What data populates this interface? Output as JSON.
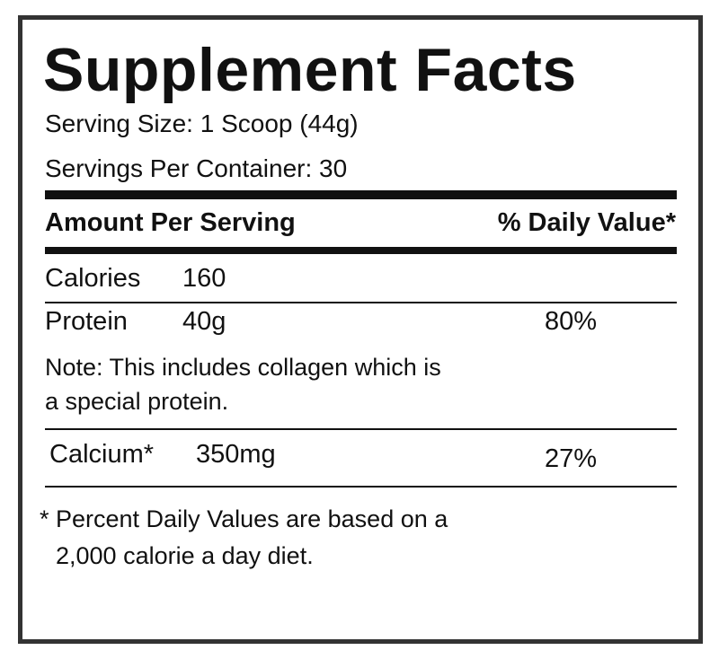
{
  "title": "Supplement Facts",
  "serving_size": "Serving Size: 1 Scoop (44g)",
  "servings_per_container": "Servings Per Container: 30",
  "header": {
    "amount": "Amount Per Serving",
    "daily_value": "% Daily Value*"
  },
  "rows": [
    {
      "name": "Calories",
      "amount": "160"
    },
    {
      "name": "Protein",
      "amount": "40g",
      "daily_value": "80%"
    },
    {
      "name": "Calcium*",
      "amount": "350mg",
      "daily_value": "27%"
    }
  ],
  "note": [
    "Note: This includes collagen which is",
    "a special protein."
  ],
  "footnote": [
    "* Percent Daily Values are based on a",
    "2,000 calorie a day diet."
  ]
}
